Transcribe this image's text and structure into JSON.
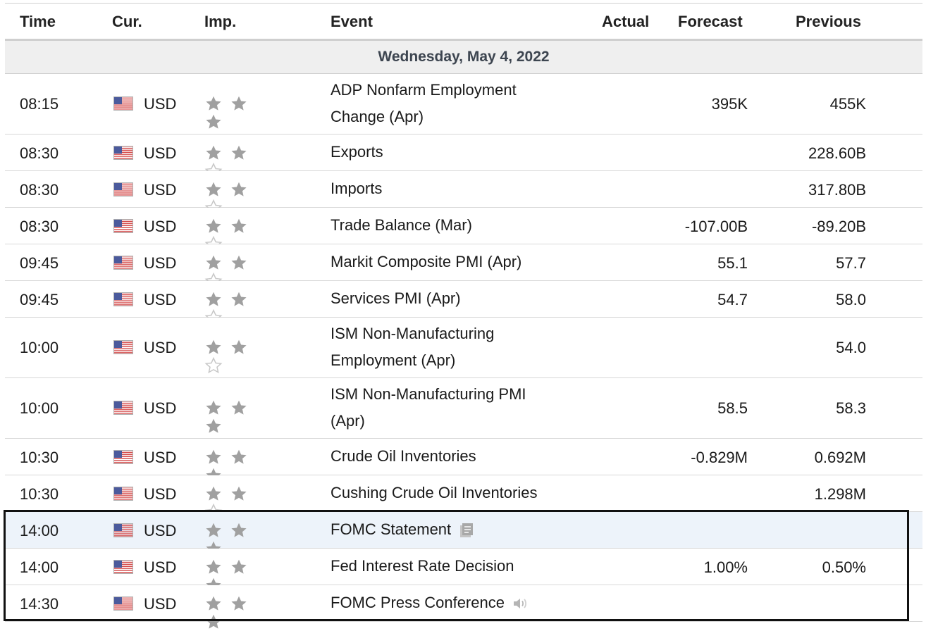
{
  "header": {
    "time": "Time",
    "cur": "Cur.",
    "imp": "Imp.",
    "event": "Event",
    "actual": "Actual",
    "forecast": "Forecast",
    "previous": "Previous"
  },
  "day_label": "Wednesday, May 4, 2022",
  "colors": {
    "star_filled": "#a0a0a0",
    "star_empty": "#c8c8c8",
    "highlight_row": "#edf3fa",
    "selection_box": "#111111"
  },
  "rows": [
    {
      "time": "08:15",
      "cur": "USD",
      "stars": 3,
      "event_lines": [
        "ADP Nonfarm Employment",
        "Change (Apr)"
      ],
      "actual": "",
      "forecast": "395K",
      "previous": "455K"
    },
    {
      "time": "08:30",
      "cur": "USD",
      "stars": 2,
      "event_lines": [
        "Exports"
      ],
      "actual": "",
      "forecast": "",
      "previous": "228.60B"
    },
    {
      "time": "08:30",
      "cur": "USD",
      "stars": 2,
      "event_lines": [
        "Imports"
      ],
      "actual": "",
      "forecast": "",
      "previous": "317.80B"
    },
    {
      "time": "08:30",
      "cur": "USD",
      "stars": 2,
      "event_lines": [
        "Trade Balance (Mar)"
      ],
      "actual": "",
      "forecast": "-107.00B",
      "previous": "-89.20B"
    },
    {
      "time": "09:45",
      "cur": "USD",
      "stars": 2,
      "event_lines": [
        "Markit Composite PMI (Apr)"
      ],
      "actual": "",
      "forecast": "55.1",
      "previous": "57.7"
    },
    {
      "time": "09:45",
      "cur": "USD",
      "stars": 2,
      "event_lines": [
        "Services PMI (Apr)"
      ],
      "actual": "",
      "forecast": "54.7",
      "previous": "58.0"
    },
    {
      "time": "10:00",
      "cur": "USD",
      "stars": 2,
      "event_lines": [
        "ISM Non-Manufacturing",
        "Employment (Apr)"
      ],
      "actual": "",
      "forecast": "",
      "previous": "54.0"
    },
    {
      "time": "10:00",
      "cur": "USD",
      "stars": 3,
      "event_lines": [
        "ISM Non-Manufacturing PMI",
        "(Apr)"
      ],
      "actual": "",
      "forecast": "58.5",
      "previous": "58.3"
    },
    {
      "time": "10:30",
      "cur": "USD",
      "stars": 3,
      "event_lines": [
        "Crude Oil Inventories"
      ],
      "actual": "",
      "forecast": "-0.829M",
      "previous": "0.692M"
    },
    {
      "time": "10:30",
      "cur": "USD",
      "stars": 2,
      "event_lines": [
        "Cushing Crude Oil Inventories"
      ],
      "actual": "",
      "forecast": "",
      "previous": "1.298M"
    },
    {
      "time": "14:00",
      "cur": "USD",
      "stars": 3,
      "event_lines": [
        "FOMC Statement"
      ],
      "icon": "document-icon",
      "highlight": true,
      "actual": "",
      "forecast": "",
      "previous": ""
    },
    {
      "time": "14:00",
      "cur": "USD",
      "stars": 3,
      "event_lines": [
        "Fed Interest Rate Decision"
      ],
      "actual": "",
      "forecast": "1.00%",
      "previous": "0.50%"
    },
    {
      "time": "14:30",
      "cur": "USD",
      "stars": 3,
      "event_lines": [
        "FOMC Press Conference"
      ],
      "icon": "speaker-icon",
      "actual": "",
      "forecast": "",
      "previous": ""
    }
  ]
}
